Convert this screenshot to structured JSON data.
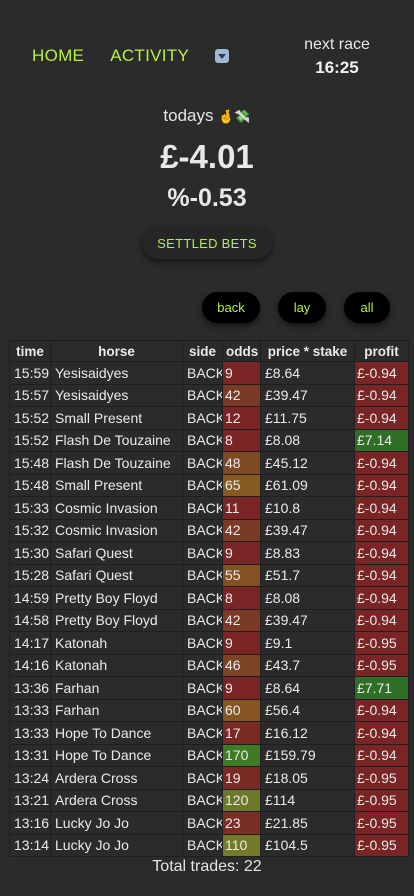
{
  "nav": {
    "home": "HOME",
    "activity": "ACTIVITY",
    "dropdown_icon": "dropdown-icon"
  },
  "next_race": {
    "label": "next race",
    "time": "16:25"
  },
  "summary": {
    "today_label": "todays",
    "today_emoji": "🤞💸",
    "total": "£-4.01",
    "percent": "%-0.53"
  },
  "settled_button": "SETTLED BETS",
  "filters": {
    "back": "back",
    "lay": "lay",
    "all": "all"
  },
  "table": {
    "headers": [
      "time",
      "horse",
      "side",
      "odds",
      "price * stake",
      "profit"
    ],
    "rows": [
      {
        "time": "15:59",
        "horse": "Yesisaidyes",
        "side": "BACK",
        "odds": "9",
        "price": "£8.64",
        "profit": "£-0.94",
        "odds_color": "#7a2525",
        "profit_color": "#7a2525"
      },
      {
        "time": "15:57",
        "horse": "Yesisaidyes",
        "side": "BACK",
        "odds": "42",
        "price": "£39.47",
        "profit": "£-0.94",
        "odds_color": "#7a3a25",
        "profit_color": "#7a2525"
      },
      {
        "time": "15:52",
        "horse": "Small Present",
        "side": "BACK",
        "odds": "12",
        "price": "£11.75",
        "profit": "£-0.94",
        "odds_color": "#7a2525",
        "profit_color": "#7a2525"
      },
      {
        "time": "15:52",
        "horse": "Flash De Touzaine",
        "side": "BACK",
        "odds": "8",
        "price": "£8.08",
        "profit": "£7.14",
        "odds_color": "#7a2525",
        "profit_color": "#2e6e27"
      },
      {
        "time": "15:48",
        "horse": "Flash De Touzaine",
        "side": "BACK",
        "odds": "48",
        "price": "£45.12",
        "profit": "£-0.94",
        "odds_color": "#7e4a24",
        "profit_color": "#7a2525"
      },
      {
        "time": "15:48",
        "horse": "Small Present",
        "side": "BACK",
        "odds": "65",
        "price": "£61.09",
        "profit": "£-0.94",
        "odds_color": "#875a22",
        "profit_color": "#7a2525"
      },
      {
        "time": "15:33",
        "horse": "Cosmic Invasion",
        "side": "BACK",
        "odds": "11",
        "price": "£10.8",
        "profit": "£-0.94",
        "odds_color": "#7a2525",
        "profit_color": "#7a2525"
      },
      {
        "time": "15:32",
        "horse": "Cosmic Invasion",
        "side": "BACK",
        "odds": "42",
        "price": "£39.47",
        "profit": "£-0.94",
        "odds_color": "#7a3a25",
        "profit_color": "#7a2525"
      },
      {
        "time": "15:30",
        "horse": "Safari Quest",
        "side": "BACK",
        "odds": "9",
        "price": "£8.83",
        "profit": "£-0.94",
        "odds_color": "#7a2525",
        "profit_color": "#7a2525"
      },
      {
        "time": "15:28",
        "horse": "Safari Quest",
        "side": "BACK",
        "odds": "55",
        "price": "£51.7",
        "profit": "£-0.94",
        "odds_color": "#825224",
        "profit_color": "#7a2525"
      },
      {
        "time": "14:59",
        "horse": "Pretty Boy Floyd",
        "side": "BACK",
        "odds": "8",
        "price": "£8.08",
        "profit": "£-0.94",
        "odds_color": "#7a2525",
        "profit_color": "#7a2525"
      },
      {
        "time": "14:58",
        "horse": "Pretty Boy Floyd",
        "side": "BACK",
        "odds": "42",
        "price": "£39.47",
        "profit": "£-0.94",
        "odds_color": "#7a3a25",
        "profit_color": "#7a2525"
      },
      {
        "time": "14:17",
        "horse": "Katonah",
        "side": "BACK",
        "odds": "9",
        "price": "£9.1",
        "profit": "£-0.95",
        "odds_color": "#7a2525",
        "profit_color": "#7a2525"
      },
      {
        "time": "14:16",
        "horse": "Katonah",
        "side": "BACK",
        "odds": "46",
        "price": "£43.7",
        "profit": "£-0.95",
        "odds_color": "#7c4424",
        "profit_color": "#7a2525"
      },
      {
        "time": "13:36",
        "horse": "Farhan",
        "side": "BACK",
        "odds": "9",
        "price": "£8.64",
        "profit": "£7.71",
        "odds_color": "#7a2525",
        "profit_color": "#2e6e27"
      },
      {
        "time": "13:33",
        "horse": "Farhan",
        "side": "BACK",
        "odds": "60",
        "price": "£56.4",
        "profit": "£-0.94",
        "odds_color": "#855622",
        "profit_color": "#7a2525"
      },
      {
        "time": "13:33",
        "horse": "Hope To Dance",
        "side": "BACK",
        "odds": "17",
        "price": "£16.12",
        "profit": "£-0.94",
        "odds_color": "#7a2a25",
        "profit_color": "#7a2525"
      },
      {
        "time": "13:31",
        "horse": "Hope To Dance",
        "side": "BACK",
        "odds": "170",
        "price": "£159.79",
        "profit": "£-0.94",
        "odds_color": "#3f7a25",
        "profit_color": "#7a2525"
      },
      {
        "time": "13:24",
        "horse": "Ardera Cross",
        "side": "BACK",
        "odds": "19",
        "price": "£18.05",
        "profit": "£-0.95",
        "odds_color": "#7a2a25",
        "profit_color": "#7a2525"
      },
      {
        "time": "13:21",
        "horse": "Ardera Cross",
        "side": "BACK",
        "odds": "120",
        "price": "£114",
        "profit": "£-0.95",
        "odds_color": "#6a7a2a",
        "profit_color": "#7a2525"
      },
      {
        "time": "13:16",
        "horse": "Lucky Jo Jo",
        "side": "BACK",
        "odds": "23",
        "price": "£21.85",
        "profit": "£-0.95",
        "odds_color": "#7a2e25",
        "profit_color": "#7a2525"
      },
      {
        "time": "13:14",
        "horse": "Lucky Jo Jo",
        "side": "BACK",
        "odds": "110",
        "price": "£104.5",
        "profit": "£-0.95",
        "odds_color": "#757a2a",
        "profit_color": "#7a2525"
      }
    ]
  },
  "total_trades": "Total trades: 22"
}
